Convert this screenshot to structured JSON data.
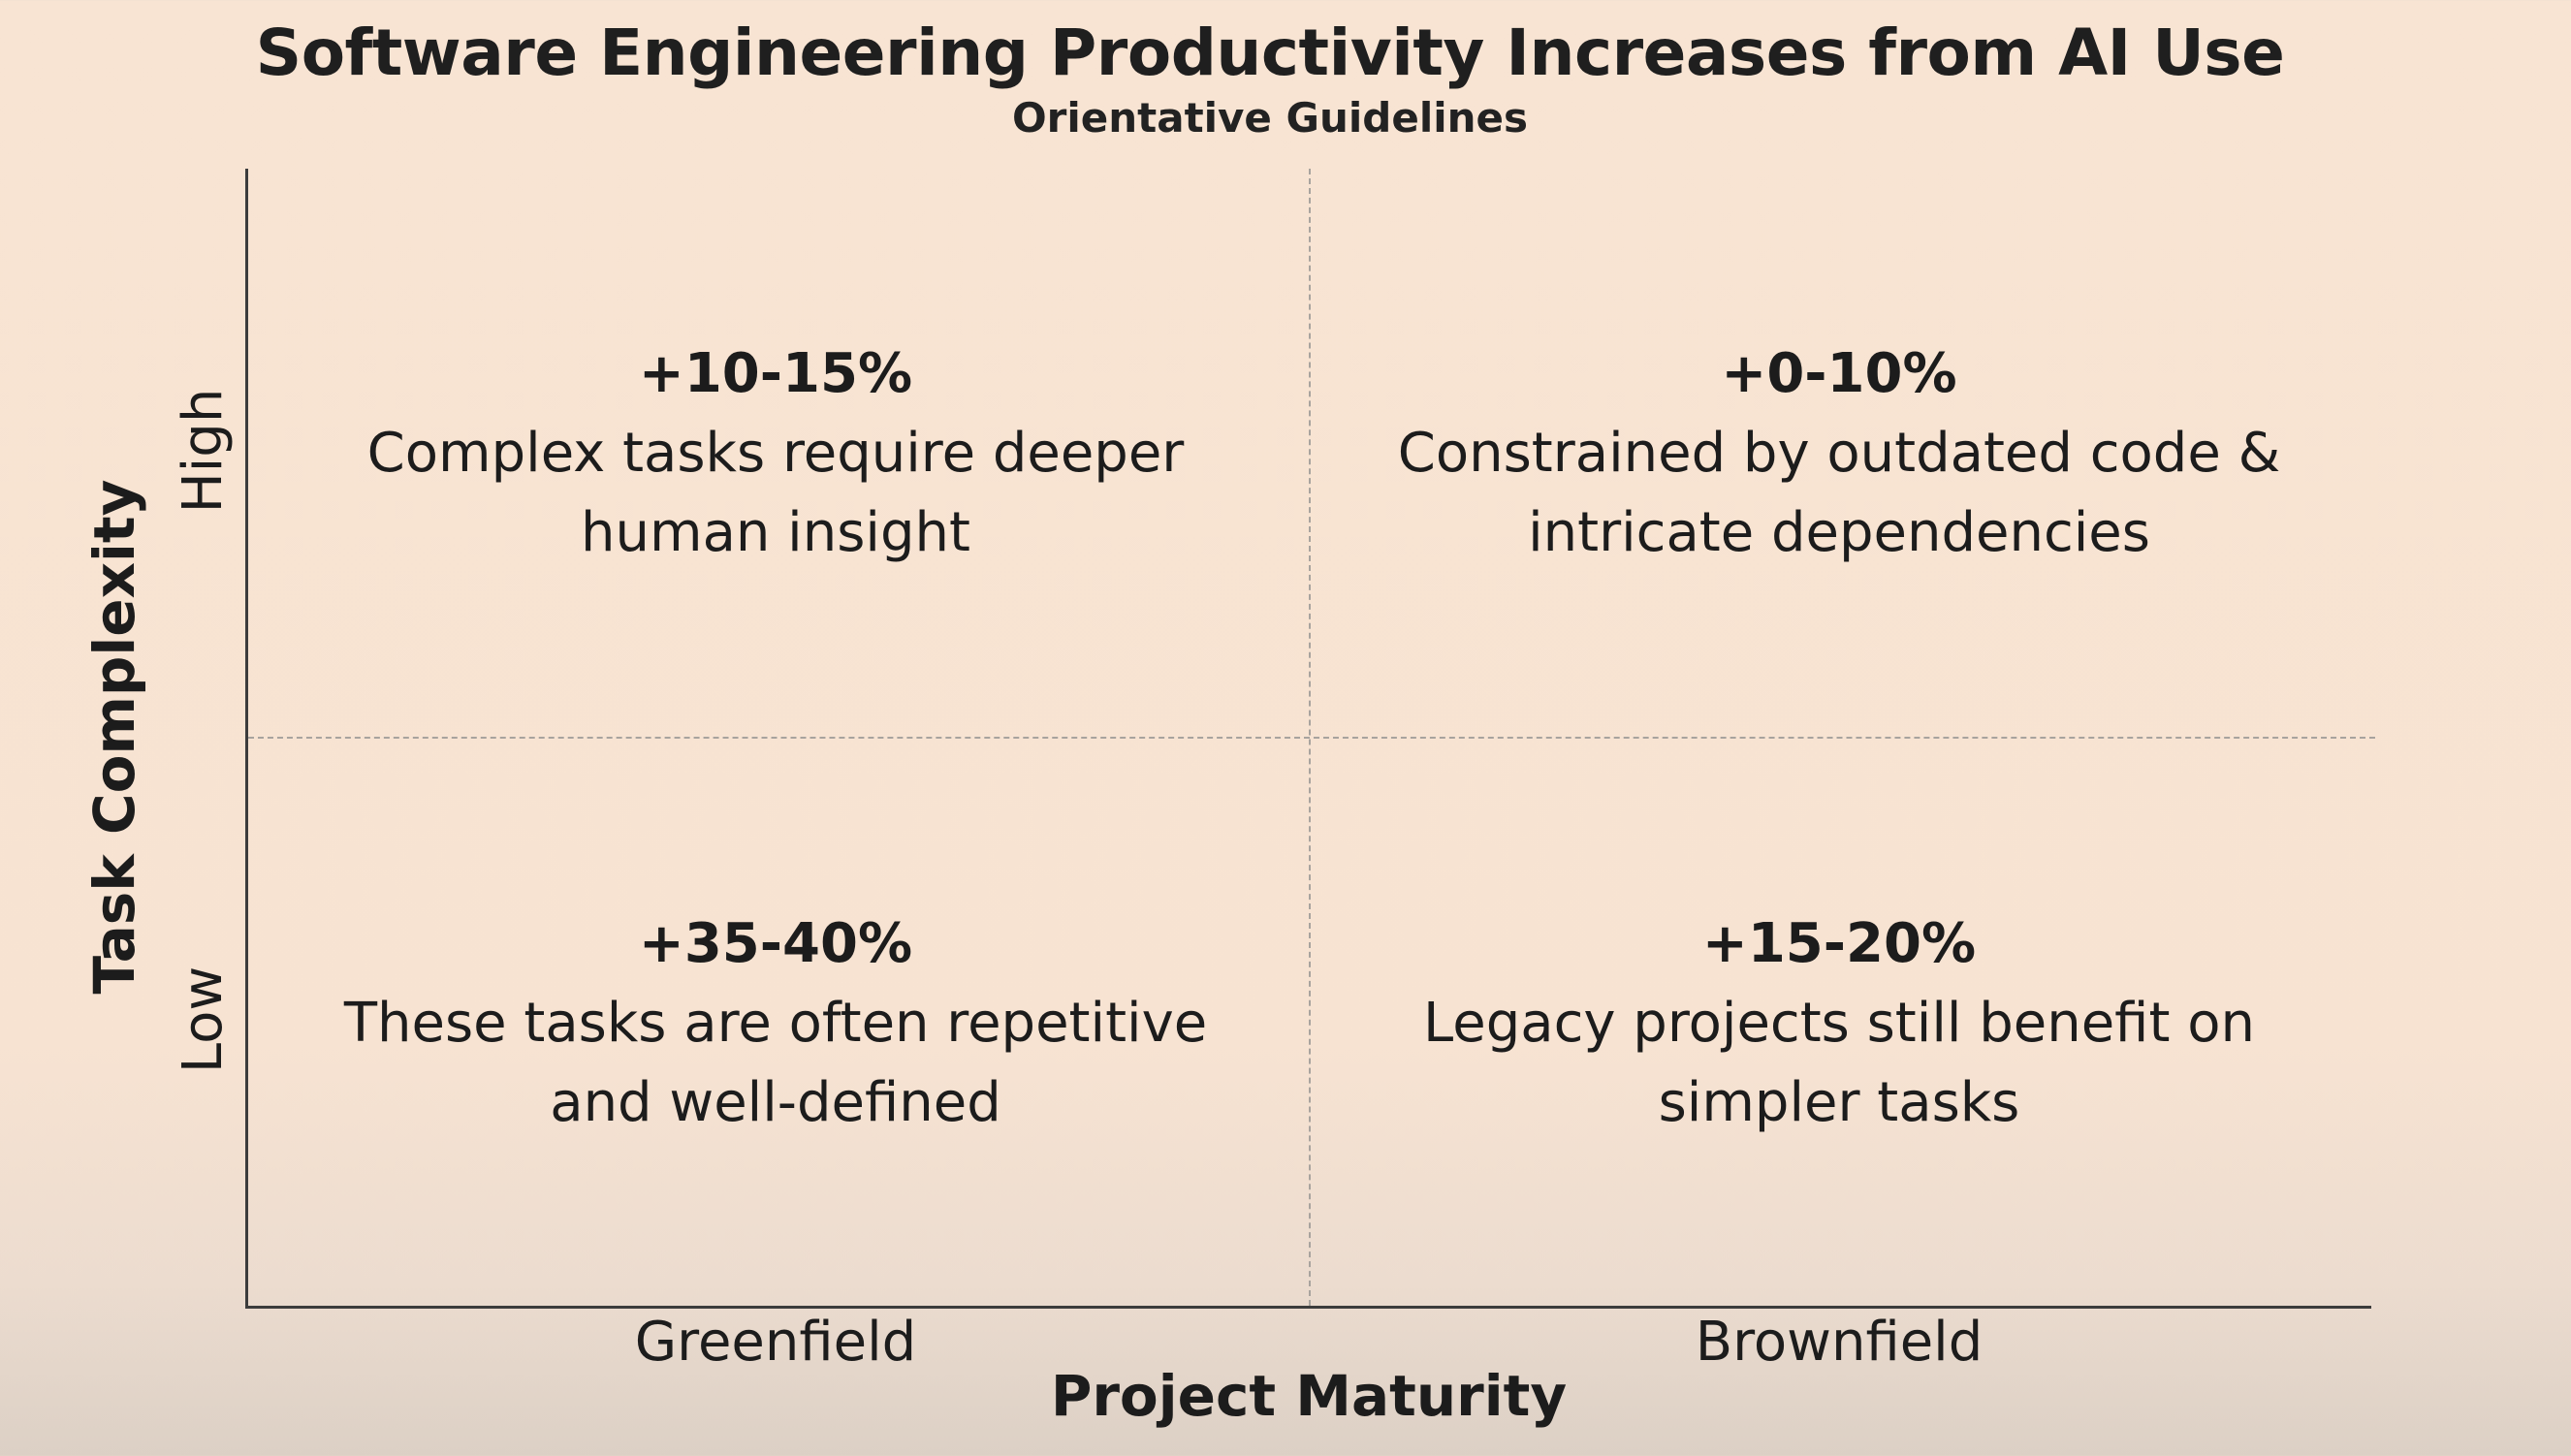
{
  "title": "Software Engineering Productivity Increases from AI Use",
  "subtitle": "Orientative Guidelines",
  "axes": {
    "x_label": "Project Maturity",
    "y_label": "Task Complexity",
    "x_ticks": [
      "Greenfield",
      "Brownfield"
    ],
    "y_ticks": [
      "Low",
      "High"
    ]
  },
  "quadrants": {
    "high_greenfield": {
      "value": "+10-15%",
      "lines": [
        "Complex tasks require deeper",
        "human insight"
      ]
    },
    "high_brownfield": {
      "value": "+0-10%",
      "lines": [
        "Constrained by outdated code &",
        "intricate dependencies"
      ]
    },
    "low_greenfield": {
      "value": "+35-40%",
      "lines": [
        "These tasks are often repetitive",
        "and well-defined"
      ]
    },
    "low_brownfield": {
      "value": "+15-20%",
      "lines": [
        "Legacy projects still benefit on",
        "simpler tasks"
      ]
    }
  },
  "colors": {
    "background": "#f8e4d3",
    "text": "#1c1c1c",
    "axis": "#3c3c3c",
    "divider": "#a8a39e"
  }
}
